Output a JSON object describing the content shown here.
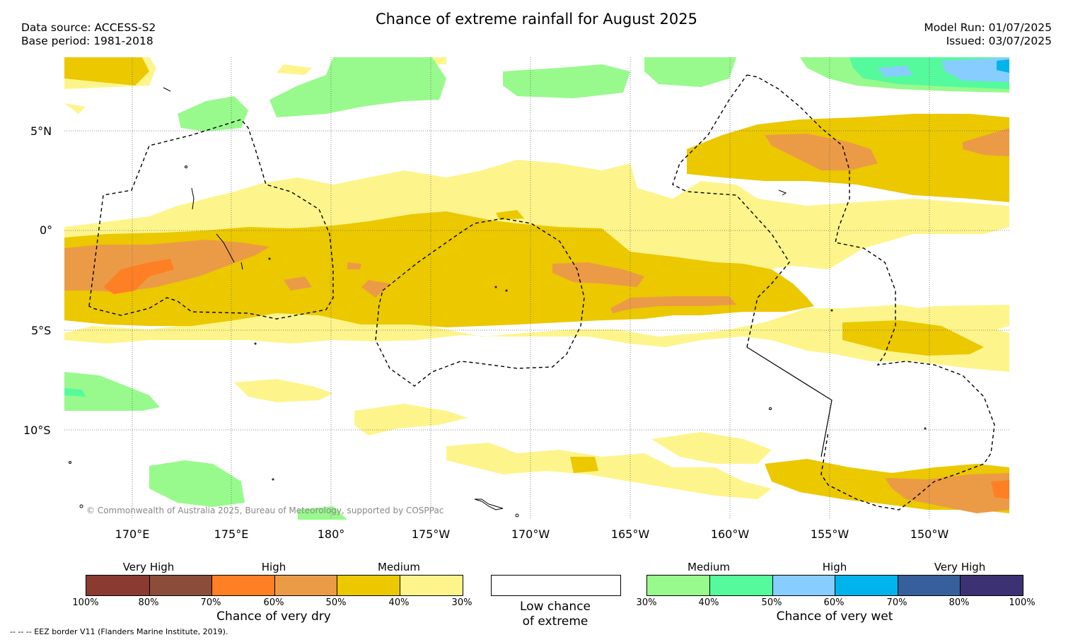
{
  "title": "Chance of extreme rainfall for August 2025",
  "meta_left": [
    "Data source: ACCESS-S2",
    "Base period: 1981-2018"
  ],
  "meta_right": [
    "Model Run: 01/07/2025",
    "Issued: 03/07/2025"
  ],
  "lat_labels": [
    "5°N",
    "0°",
    "5°S",
    "10°S"
  ],
  "lon_labels": [
    "170°E",
    "175°E",
    "180°",
    "175°W",
    "170°W",
    "165°W",
    "160°W",
    "155°W",
    "150°W"
  ],
  "copyright": "© Commonwealth of Australia 2025, Bureau of Meteorology, supported by COSPPac",
  "eez_note": "--  --  -- EEZ border V11 (Flanders Marine Institute, 2019).",
  "legend_dry": {
    "title": "Chance of very dry",
    "categories": [
      "Very High",
      "High",
      "Medium"
    ],
    "colors": [
      "#8b3a32",
      "#8b4c3a",
      "#ff7f24",
      "#eb9b46",
      "#ebc800",
      "#fdf58b"
    ],
    "ticks": [
      "100%",
      "80%",
      "70%",
      "60%",
      "50%",
      "40%",
      "30%"
    ]
  },
  "legend_low": {
    "label_line1": "Low chance",
    "label_line2": "of extreme",
    "color": "#ffffff"
  },
  "legend_wet": {
    "title": "Chance of very wet",
    "categories": [
      "Medium",
      "High",
      "Very High"
    ],
    "colors": [
      "#98fa8c",
      "#55fa9c",
      "#87cdff",
      "#00b4eb",
      "#375f9b",
      "#3c3273"
    ],
    "ticks": [
      "30%",
      "40%",
      "50%",
      "60%",
      "70%",
      "80%",
      "100%"
    ]
  }
}
